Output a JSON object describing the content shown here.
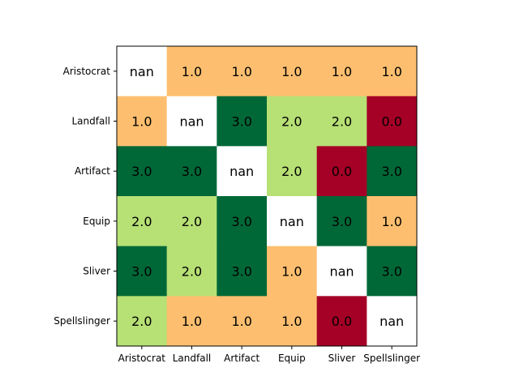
{
  "chart_data": {
    "type": "heatmap",
    "x_categories": [
      "Aristocrat",
      "Landfall",
      "Artifact",
      "Equip",
      "Sliver",
      "Spellslinger"
    ],
    "y_categories": [
      "Aristocrat",
      "Landfall",
      "Artifact",
      "Equip",
      "Sliver",
      "Spellslinger"
    ],
    "values": [
      [
        null,
        1.0,
        1.0,
        1.0,
        1.0,
        1.0
      ],
      [
        1.0,
        null,
        3.0,
        2.0,
        2.0,
        0.0
      ],
      [
        3.0,
        3.0,
        null,
        2.0,
        0.0,
        3.0
      ],
      [
        2.0,
        2.0,
        3.0,
        null,
        3.0,
        1.0
      ],
      [
        3.0,
        2.0,
        3.0,
        1.0,
        null,
        3.0
      ],
      [
        2.0,
        1.0,
        1.0,
        1.0,
        0.0,
        null
      ]
    ],
    "cell_text": [
      [
        "nan",
        "1.0",
        "1.0",
        "1.0",
        "1.0",
        "1.0"
      ],
      [
        "1.0",
        "nan",
        "3.0",
        "2.0",
        "2.0",
        "0.0"
      ],
      [
        "3.0",
        "3.0",
        "nan",
        "2.0",
        "0.0",
        "3.0"
      ],
      [
        "2.0",
        "2.0",
        "3.0",
        "nan",
        "3.0",
        "1.0"
      ],
      [
        "3.0",
        "2.0",
        "3.0",
        "1.0",
        "nan",
        "3.0"
      ],
      [
        "2.0",
        "1.0",
        "1.0",
        "1.0",
        "0.0",
        "nan"
      ]
    ],
    "value_range": [
      0,
      3
    ],
    "colormap": "RdYlGn",
    "colors": {
      "0": "#a50026",
      "1": "#fdbf6f",
      "2": "#b7e075",
      "3": "#006837",
      "nan": "#ffffff"
    },
    "grid": false,
    "title": "",
    "xlabel": "",
    "ylabel": ""
  }
}
